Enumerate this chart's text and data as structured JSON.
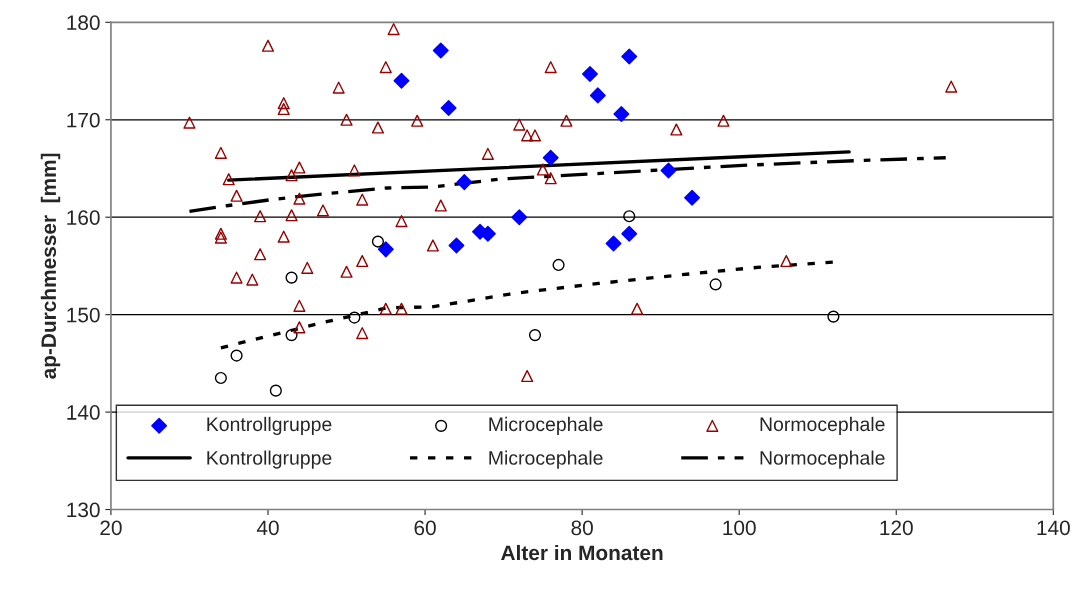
{
  "chart_data": {
    "type": "scatter",
    "xlabel": "Alter in Monaten",
    "ylabel": "ap-Durchmesser  [mm]",
    "xlim": [
      20,
      140
    ],
    "xticks": [
      20,
      40,
      60,
      80,
      100,
      120,
      140
    ],
    "ylim": [
      130,
      180
    ],
    "yticks": [
      130,
      140,
      150,
      160,
      170,
      180
    ],
    "grid": "y",
    "legend": "bottom",
    "series": [
      {
        "name": "Kontrollgruppe",
        "marker": "diamond",
        "color": "#0000ff",
        "x": [
          57,
          55,
          62,
          63,
          81,
          82,
          86,
          85,
          76,
          65,
          91,
          94,
          72,
          67,
          68,
          64,
          84,
          86
        ],
        "values": [
          174.0,
          156.7,
          177.1,
          171.2,
          174.7,
          172.5,
          176.5,
          170.6,
          166.1,
          163.6,
          164.8,
          162.0,
          160.0,
          158.5,
          158.3,
          157.1,
          157.3,
          158.3
        ]
      },
      {
        "name": "Microcephale",
        "marker": "circle",
        "color": "#000000",
        "x": [
          54,
          43,
          51,
          43,
          36,
          34,
          41,
          86,
          77,
          97,
          74,
          112
        ],
        "values": [
          157.5,
          153.8,
          149.7,
          147.9,
          145.8,
          143.5,
          142.2,
          160.1,
          155.1,
          153.1,
          147.9,
          149.8
        ]
      },
      {
        "name": "Normocephale",
        "marker": "triangle",
        "color": "#990000",
        "x": [
          56,
          40,
          55,
          49,
          42,
          42,
          30,
          50,
          54,
          59,
          34,
          44,
          43,
          51,
          35,
          36,
          44,
          52,
          47,
          39,
          43,
          57,
          34,
          34,
          42,
          39,
          61,
          45,
          52,
          50,
          36,
          38,
          44,
          55,
          57,
          44,
          52,
          76,
          72,
          73,
          74,
          78,
          92,
          98,
          68,
          75,
          76,
          62,
          87,
          73,
          127,
          106
        ],
        "values": [
          179.3,
          177.6,
          175.4,
          173.3,
          171.7,
          171.1,
          169.7,
          170.0,
          169.2,
          169.9,
          166.6,
          165.1,
          164.3,
          164.8,
          163.9,
          162.2,
          161.9,
          161.8,
          160.7,
          160.1,
          160.2,
          159.6,
          158.3,
          157.9,
          158.0,
          156.2,
          157.1,
          154.8,
          155.5,
          154.4,
          153.8,
          153.6,
          150.9,
          150.6,
          150.6,
          148.7,
          148.1,
          175.4,
          169.5,
          168.4,
          168.4,
          169.9,
          169.0,
          169.9,
          166.5,
          164.9,
          164.0,
          161.2,
          150.6,
          143.7,
          173.4,
          155.5
        ]
      },
      {
        "name": "Kontrollgruppe",
        "type": "line",
        "line_style": "solid",
        "color": "#000000",
        "x": [
          35,
          114
        ],
        "values": [
          163.8,
          166.7
        ]
      },
      {
        "name": "Microcephale",
        "type": "line",
        "line_style": "dotted",
        "color": "#000000",
        "x": [
          34,
          40,
          47.6,
          55.2,
          60.9,
          71.5,
          82.1,
          92.7,
          101.6,
          112
        ],
        "values": [
          146.6,
          147.8,
          149.3,
          150.7,
          150.8,
          152.2,
          153.2,
          154.1,
          154.8,
          155.4
        ]
      },
      {
        "name": "Normocephale",
        "type": "line",
        "line_style": "dashdot",
        "color": "#000000",
        "x": [
          30,
          35,
          40.4,
          45.9,
          55.2,
          60.9,
          69.4,
          84.6,
          99.9,
          114.7,
          126.3
        ],
        "values": [
          160.6,
          161.2,
          161.8,
          162.3,
          163.0,
          163.1,
          163.9,
          164.6,
          165.3,
          165.8,
          166.1
        ]
      }
    ]
  }
}
